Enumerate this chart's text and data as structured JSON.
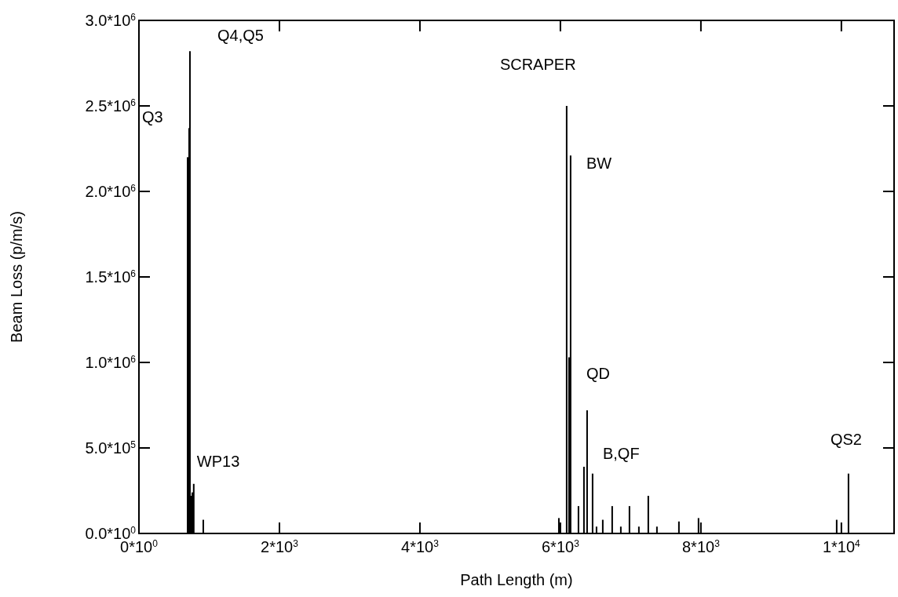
{
  "chart_data": {
    "type": "bar",
    "xlabel": "Path Length (m)",
    "ylabel": "Beam Loss (p/m/s)",
    "x": [
      693,
      715,
      726,
      740,
      760,
      780,
      916,
      5978,
      6089,
      6123,
      6145,
      6257,
      6335,
      6380,
      6458,
      6514,
      6603,
      6737,
      6860,
      6983,
      7117,
      7251,
      7374,
      7687,
      7966,
      9933,
      10101
    ],
    "values": [
      2200000,
      2370000,
      2820000,
      220000,
      240000,
      290000,
      80000,
      90000,
      2500000,
      1030000,
      2210000,
      160000,
      390000,
      720000,
      350000,
      40000,
      80000,
      160000,
      40000,
      160000,
      40000,
      220000,
      40000,
      70000,
      90000,
      80000,
      350000
    ],
    "color": "#000000",
    "xlim": [
      0,
      10750
    ],
    "ylim": [
      0,
      3000000
    ],
    "xticks": [
      {
        "value": 0,
        "label": "0*10$^{0}$"
      },
      {
        "value": 2000,
        "label": "2*10$^{3}$"
      },
      {
        "value": 4000,
        "label": "4*10$^{3}$"
      },
      {
        "value": 6000,
        "label": "6*10$^{3}$"
      },
      {
        "value": 8000,
        "label": "8*10$^{3}$"
      },
      {
        "value": 10000,
        "label": "1*10$^{4}$"
      }
    ],
    "yticks": [
      {
        "value": 0,
        "label": "0.0*10$^{0}$"
      },
      {
        "value": 500000,
        "label": "5.0*10$^{5}$"
      },
      {
        "value": 1000000,
        "label": "1.0*10$^{6}$"
      },
      {
        "value": 1500000,
        "label": "1.5*10$^{6}$"
      },
      {
        "value": 2000000,
        "label": "2.0*10$^{6}$"
      },
      {
        "value": 2500000,
        "label": "2.5*10$^{6}$"
      },
      {
        "value": 3000000,
        "label": "3.0*10$^{6}$"
      }
    ],
    "grid": false,
    "annotations": [
      {
        "text": "Q4,Q5",
        "x": 726,
        "y": 2820000
      },
      {
        "text": "Q3",
        "x": 693,
        "y": 2200000
      },
      {
        "text": "WP13",
        "x": 780,
        "y": 290000
      },
      {
        "text": "SCRAPER",
        "x": 6089,
        "y": 2500000
      },
      {
        "text": "BW",
        "x": 6145,
        "y": 2210000
      },
      {
        "text": "QD",
        "x": 6123,
        "y": 1030000
      },
      {
        "text": "B,QF",
        "x": 6380,
        "y": 720000
      },
      {
        "text": "QS2",
        "x": 10101,
        "y": 350000
      }
    ]
  }
}
